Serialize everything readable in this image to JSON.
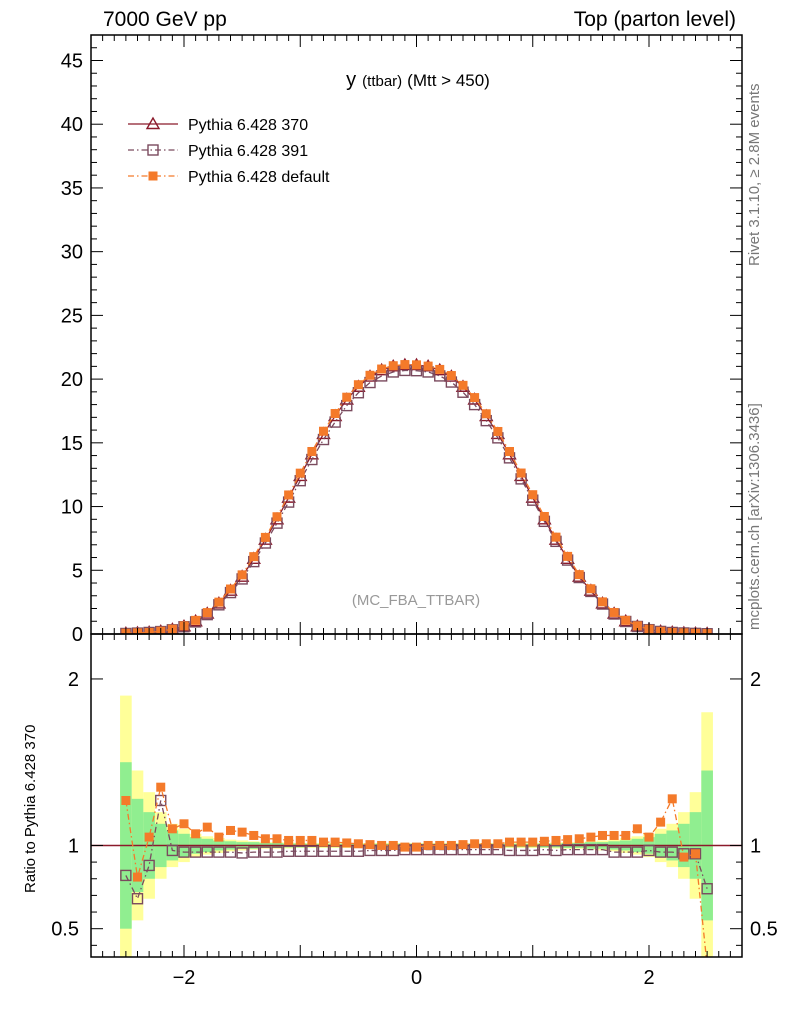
{
  "header": {
    "left": "7000 GeV pp",
    "right": "Top (parton level)"
  },
  "side_labels": {
    "rivet": "Rivet 3.1.10, ≥ 2.8M events",
    "mcplots": "mcplots.cern.ch [arXiv:1306.3436]"
  },
  "colors": {
    "pythia_370": "#8b1a2b",
    "pythia_391": "#7a4a5e",
    "pythia_default": "#f47a2a",
    "band_green": "#90ee90",
    "band_yellow": "#ffff99"
  },
  "chart_data": [
    {
      "type": "line",
      "title": "y (ttbar) (Mtt > 450)",
      "title_main": "y",
      "title_small": "(ttbar)",
      "title_rest": "(Mtt > 450)",
      "watermark": "(MC_FBA_TTBAR)",
      "ylim": [
        0,
        47
      ],
      "xlim": [
        -2.8,
        2.8
      ],
      "y_ticks": [
        0,
        5,
        10,
        15,
        20,
        25,
        30,
        35,
        40,
        45
      ],
      "legend_placement": "top-left",
      "x": [
        -2.5,
        -2.4,
        -2.3,
        -2.2,
        -2.1,
        -2.0,
        -1.9,
        -1.8,
        -1.7,
        -1.6,
        -1.5,
        -1.4,
        -1.3,
        -1.2,
        -1.1,
        -1.0,
        -0.9,
        -0.8,
        -0.7,
        -0.6,
        -0.5,
        -0.4,
        -0.3,
        -0.2,
        -0.1,
        0.0,
        0.1,
        0.2,
        0.3,
        0.4,
        0.5,
        0.6,
        0.7,
        0.8,
        0.9,
        1.0,
        1.1,
        1.2,
        1.3,
        1.4,
        1.5,
        1.6,
        1.7,
        1.8,
        1.9,
        2.0,
        2.1,
        2.2,
        2.3,
        2.4,
        2.5
      ],
      "series": [
        {
          "name": "Pythia 6.428 370",
          "marker": "triangle-open",
          "dash": "solid",
          "values": [
            0.05,
            0.08,
            0.12,
            0.2,
            0.35,
            0.6,
            1.0,
            1.6,
            2.4,
            3.4,
            4.5,
            5.9,
            7.4,
            9.0,
            10.7,
            12.4,
            14.1,
            15.7,
            17.1,
            18.4,
            19.4,
            20.2,
            20.7,
            21.0,
            21.1,
            21.1,
            21.0,
            20.7,
            20.2,
            19.4,
            18.4,
            17.1,
            15.7,
            14.1,
            12.4,
            10.7,
            9.0,
            7.4,
            5.9,
            4.5,
            3.4,
            2.4,
            1.6,
            1.0,
            0.6,
            0.35,
            0.2,
            0.12,
            0.08,
            0.05,
            0.03
          ]
        },
        {
          "name": "Pythia 6.428 391",
          "marker": "square-open",
          "dash": "dashdot",
          "values": [
            0.04,
            0.07,
            0.12,
            0.19,
            0.33,
            0.57,
            0.95,
            1.52,
            2.29,
            3.25,
            4.32,
            5.68,
            7.14,
            8.7,
            10.35,
            12.03,
            13.69,
            15.26,
            16.63,
            17.92,
            18.93,
            19.73,
            20.25,
            20.56,
            20.68,
            20.66,
            20.56,
            20.25,
            19.77,
            18.97,
            18.0,
            16.74,
            15.39,
            13.82,
            12.17,
            10.5,
            8.84,
            7.27,
            5.8,
            4.43,
            3.34,
            2.35,
            1.57,
            0.98,
            0.59,
            0.34,
            0.2,
            0.12,
            0.08,
            0.05,
            0.02
          ]
        },
        {
          "name": "Pythia 6.428 default",
          "marker": "square-filled",
          "dash": "dashdot",
          "values": [
            0.06,
            0.09,
            0.12,
            0.22,
            0.38,
            0.64,
            1.07,
            1.68,
            2.5,
            3.53,
            4.64,
            6.07,
            7.58,
            9.2,
            10.91,
            12.62,
            14.32,
            15.91,
            17.3,
            18.58,
            19.56,
            20.3,
            20.79,
            21.05,
            21.14,
            21.12,
            21.02,
            20.76,
            20.28,
            19.51,
            18.55,
            17.28,
            15.89,
            14.32,
            12.63,
            10.93,
            9.22,
            7.6,
            6.09,
            4.66,
            3.55,
            2.52,
            1.69,
            1.07,
            0.64,
            0.38,
            0.21,
            0.12,
            0.09,
            0.05,
            0.03
          ]
        }
      ]
    },
    {
      "type": "line",
      "ylabel": "Ratio to Pythia 6.428 370",
      "ylim": [
        0.33,
        2.27
      ],
      "xlim": [
        -2.8,
        2.8
      ],
      "x_ticks": [
        -2,
        0,
        2
      ],
      "y_ticks": [
        0.5,
        1,
        2
      ],
      "reference_line": 1,
      "x": [
        -2.5,
        -2.4,
        -2.3,
        -2.2,
        -2.1,
        -2.0,
        -1.9,
        -1.8,
        -1.7,
        -1.6,
        -1.5,
        -1.4,
        -1.3,
        -1.2,
        -1.1,
        -1.0,
        -0.9,
        -0.8,
        -0.7,
        -0.6,
        -0.5,
        -0.4,
        -0.3,
        -0.2,
        -0.1,
        0.0,
        0.1,
        0.2,
        0.3,
        0.4,
        0.5,
        0.6,
        0.7,
        0.8,
        0.9,
        1.0,
        1.1,
        1.2,
        1.3,
        1.4,
        1.5,
        1.6,
        1.7,
        1.8,
        1.9,
        2.0,
        2.1,
        2.2,
        2.3,
        2.4,
        2.5
      ],
      "bands": {
        "x_edges": [
          -2.55,
          -2.45,
          -2.35,
          -2.25,
          -2.15,
          -2.05,
          -1.95,
          -1.85,
          -1.75,
          -1.65,
          -1.55,
          -1.45,
          -1.35,
          -1.25,
          -1.15,
          -1.05,
          -0.95,
          -0.85,
          -0.75,
          -0.65,
          -0.55,
          -0.45,
          -0.35,
          -0.25,
          -0.15,
          -0.05,
          0.05,
          0.15,
          0.25,
          0.35,
          0.45,
          0.55,
          0.65,
          0.75,
          0.85,
          0.95,
          1.05,
          1.15,
          1.25,
          1.35,
          1.45,
          1.55,
          1.65,
          1.75,
          1.85,
          1.95,
          2.05,
          2.15,
          2.25,
          2.35,
          2.45,
          2.55
        ],
        "green_halfwidth": [
          0.5,
          0.28,
          0.2,
          0.13,
          0.09,
          0.07,
          0.05,
          0.04,
          0.03,
          0.025,
          0.02,
          0.02,
          0.015,
          0.015,
          0.012,
          0.012,
          0.01,
          0.01,
          0.01,
          0.01,
          0.01,
          0.01,
          0.01,
          0.01,
          0.01,
          0.01,
          0.01,
          0.01,
          0.01,
          0.01,
          0.01,
          0.01,
          0.01,
          0.01,
          0.01,
          0.01,
          0.012,
          0.012,
          0.015,
          0.015,
          0.02,
          0.02,
          0.025,
          0.03,
          0.04,
          0.05,
          0.07,
          0.09,
          0.13,
          0.2,
          0.45
        ],
        "yellow_halfwidth": [
          0.9,
          0.45,
          0.32,
          0.2,
          0.13,
          0.1,
          0.07,
          0.055,
          0.045,
          0.035,
          0.03,
          0.025,
          0.02,
          0.02,
          0.018,
          0.015,
          0.015,
          0.015,
          0.015,
          0.015,
          0.015,
          0.015,
          0.015,
          0.015,
          0.015,
          0.015,
          0.015,
          0.015,
          0.015,
          0.015,
          0.015,
          0.015,
          0.015,
          0.015,
          0.015,
          0.015,
          0.015,
          0.018,
          0.02,
          0.02,
          0.025,
          0.03,
          0.035,
          0.045,
          0.055,
          0.07,
          0.1,
          0.13,
          0.2,
          0.32,
          0.8
        ]
      },
      "series": [
        {
          "name": "Pythia 6.428 391",
          "marker": "square-open",
          "values": [
            0.82,
            0.68,
            0.88,
            1.27,
            0.97,
            0.96,
            0.96,
            0.96,
            0.96,
            0.96,
            0.955,
            0.96,
            0.96,
            0.96,
            0.965,
            0.965,
            0.965,
            0.965,
            0.965,
            0.965,
            0.965,
            0.97,
            0.97,
            0.97,
            0.975,
            0.975,
            0.975,
            0.975,
            0.975,
            0.975,
            0.975,
            0.975,
            0.975,
            0.97,
            0.97,
            0.97,
            0.975,
            0.97,
            0.975,
            0.975,
            0.975,
            0.975,
            0.96,
            0.96,
            0.96,
            0.97,
            0.96,
            0.96,
            0.95,
            0.95,
            0.74
          ]
        },
        {
          "name": "Pythia 6.428 default",
          "marker": "square-filled",
          "values": [
            1.27,
            0.81,
            1.05,
            1.35,
            1.1,
            1.13,
            1.07,
            1.11,
            1.05,
            1.09,
            1.08,
            1.06,
            1.04,
            1.04,
            1.03,
            1.03,
            1.03,
            1.02,
            1.02,
            1.015,
            1.01,
            1.005,
            1.0,
            1.0,
            0.99,
            0.99,
            1.0,
            1.0,
            1.0,
            1.005,
            1.01,
            1.01,
            1.01,
            1.02,
            1.02,
            1.02,
            1.025,
            1.03,
            1.035,
            1.04,
            1.05,
            1.06,
            1.06,
            1.06,
            1.1,
            1.05,
            1.14,
            1.28,
            0.93,
            0.95,
            0.28
          ]
        }
      ]
    }
  ]
}
